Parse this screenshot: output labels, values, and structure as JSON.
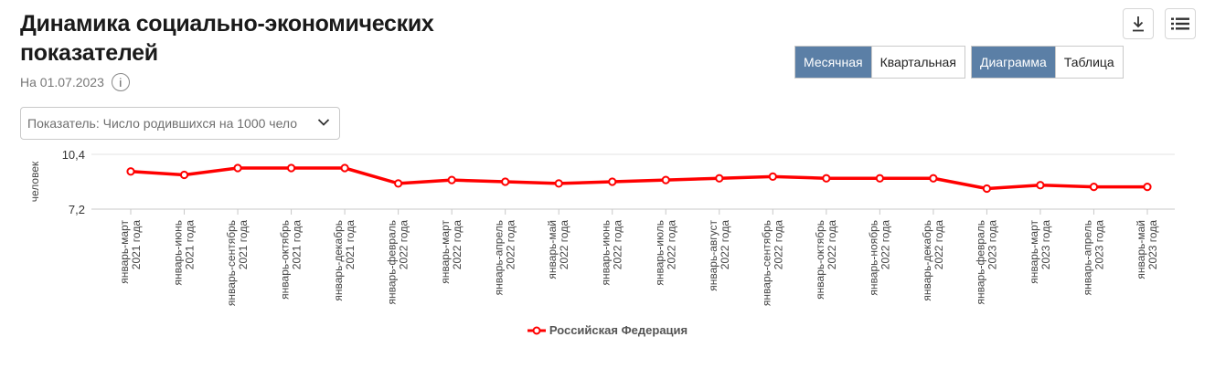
{
  "header": {
    "title": "Динамика социально-экономических показателей",
    "date": "На 01.07.2023",
    "info_icon": "i"
  },
  "toolbar": {
    "download_icon": "download-icon",
    "list_icon": "list-icon",
    "period_options": [
      "Месячная",
      "Квартальная"
    ],
    "period_selected": "Месячная",
    "view_options": [
      "Диаграмма",
      "Таблица"
    ],
    "view_selected": "Диаграмма"
  },
  "indicator_select": {
    "value": "Показатель: Число родившихся на 1000 чело",
    "icon": "chevron-down-icon"
  },
  "chart_data": {
    "type": "line",
    "ylabel": "человек",
    "ylim": [
      7.2,
      10.4
    ],
    "yticks": [
      "10,4",
      "7,2"
    ],
    "categories": [
      [
        "январь-март",
        "2021 года"
      ],
      [
        "январь-июнь",
        "2021 года"
      ],
      [
        "январь-сентябрь",
        "2021 года"
      ],
      [
        "январь-октябрь",
        "2021 года"
      ],
      [
        "январь-декабрь",
        "2021 года"
      ],
      [
        "январь-февраль",
        "2022 года"
      ],
      [
        "январь-март",
        "2022 года"
      ],
      [
        "январь-апрель",
        "2022 года"
      ],
      [
        "январь-май",
        "2022 года"
      ],
      [
        "январь-июнь",
        "2022 года"
      ],
      [
        "январь-июль",
        "2022 года"
      ],
      [
        "январь-август",
        "2022 года"
      ],
      [
        "январь-сентябрь",
        "2022 года"
      ],
      [
        "январь-октябрь",
        "2022 года"
      ],
      [
        "январь-ноябрь",
        "2022 года"
      ],
      [
        "январь-декабрь",
        "2022 года"
      ],
      [
        "январь-февраль",
        "2023 года"
      ],
      [
        "январь-март",
        "2023 года"
      ],
      [
        "январь-апрель",
        "2023 года"
      ],
      [
        "январь-май",
        "2023 года"
      ]
    ],
    "series": [
      {
        "name": "Российская Федерация",
        "color": "#ff0000",
        "values": [
          9.4,
          9.2,
          9.6,
          9.6,
          9.6,
          8.7,
          8.9,
          8.8,
          8.7,
          8.8,
          8.9,
          9.0,
          9.1,
          9.0,
          9.0,
          9.0,
          8.4,
          8.6,
          8.5,
          8.5
        ]
      }
    ],
    "grid": true,
    "legend_position": "bottom-center"
  }
}
